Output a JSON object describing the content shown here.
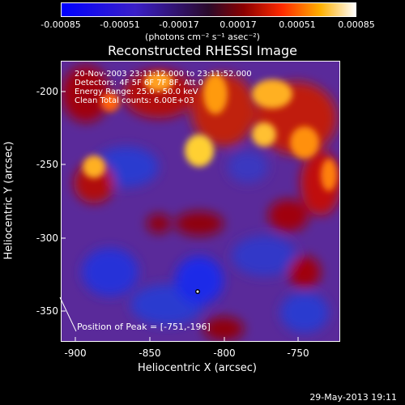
{
  "colorbar": {
    "ticks": [
      "-0.00085",
      "-0.00051",
      "-0.00017",
      "0.00017",
      "0.00051",
      "0.00085"
    ],
    "units": "(photons cm⁻² s⁻¹ asec⁻²)"
  },
  "title": "Reconstructed RHESSI Image",
  "info": {
    "line1": "20-Nov-2003 23:11:12.000 to 23:11:52.000",
    "line2": "Detectors: 4F 5F 6F 7F 8F, Att 0",
    "line3": "Energy Range: 25.0 - 50.0 keV",
    "line4": "Clean     Total counts: 6.00E+03"
  },
  "yaxis": {
    "label": "Heliocentric Y (arcsec)",
    "ticks": [
      "-200",
      "-250",
      "-300",
      "-350"
    ]
  },
  "xaxis": {
    "label": "Heliocentric X (arcsec)",
    "ticks": [
      "-900",
      "-850",
      "-800",
      "-750"
    ]
  },
  "peak_label": "Position of Peak = [-751,-196]",
  "timestamp": "29-May-2013 19:11",
  "colors": {
    "low": "#0000ff",
    "mid": "#6a2fa8",
    "high_red": "#d40000",
    "high_yellow": "#ffdd33",
    "white": "#ffffff"
  }
}
